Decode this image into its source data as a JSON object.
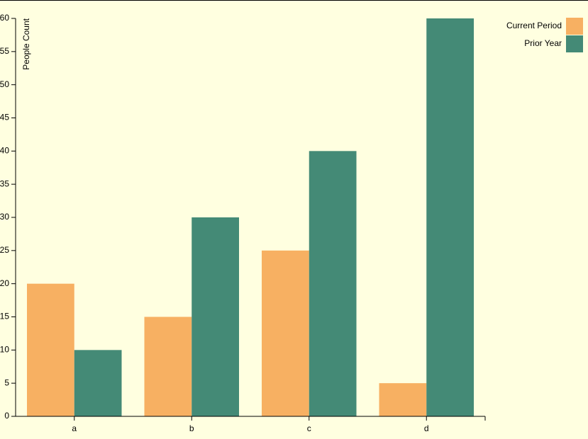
{
  "chart_data": {
    "type": "bar",
    "y_label": "People Count",
    "categories": [
      "a",
      "b",
      "c",
      "d"
    ],
    "series": [
      {
        "name": "Current Period",
        "color": "#f7b062",
        "values": [
          20,
          15,
          25,
          5
        ]
      },
      {
        "name": "Prior Year",
        "color": "#448a76",
        "values": [
          10,
          30,
          40,
          60
        ]
      }
    ],
    "ylim": [
      0,
      60
    ],
    "yticks": [
      0,
      5,
      10,
      15,
      20,
      25,
      30,
      35,
      40,
      45,
      50,
      55,
      60
    ]
  }
}
